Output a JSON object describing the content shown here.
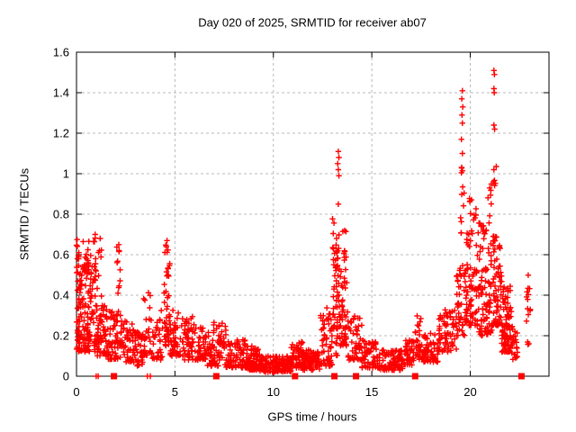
{
  "chart_data": {
    "type": "scatter",
    "title": "Day 020 of 2025, SRMTID for receiver ab07",
    "xlabel": "GPS time / hours",
    "ylabel": "SRMTID / TECUs",
    "xlim": [
      0,
      24
    ],
    "ylim": [
      0,
      1.6
    ],
    "xticks": {
      "values": [
        0,
        5,
        10,
        15,
        20
      ],
      "labels": [
        "0",
        "5",
        "10",
        "15",
        "20"
      ]
    },
    "yticks": {
      "values": [
        0,
        0.2,
        0.4,
        0.6,
        0.8,
        1.0,
        1.2,
        1.4,
        1.6
      ],
      "labels": [
        "0",
        "0.2",
        "0.4",
        "0.6",
        "0.8",
        "1",
        "1.2",
        "1.4",
        "1.6"
      ]
    },
    "grid": true,
    "legend": "none",
    "marker": "plus",
    "colors": {
      "points": "#ff0000",
      "grid": "#b9b9b9",
      "axis": "#000000",
      "text": "#000000",
      "background": "#ffffff"
    },
    "clusters": [
      [
        0.0,
        0.15,
        0.13,
        0.68,
        40,
        1.6
      ],
      [
        0.1,
        0.7,
        0.12,
        0.55,
        95,
        1.8
      ],
      [
        0.3,
        0.65,
        0.5,
        0.67,
        16,
        1.0
      ],
      [
        0.7,
        1.3,
        0.15,
        0.7,
        65,
        1.7
      ],
      [
        0.9,
        1.6,
        0.1,
        0.35,
        60,
        1.4
      ],
      [
        1.6,
        2.1,
        0.08,
        0.32,
        50,
        1.4
      ],
      [
        2.05,
        2.25,
        0.3,
        0.65,
        13,
        1.0
      ],
      [
        2.2,
        2.9,
        0.07,
        0.28,
        55,
        1.4
      ],
      [
        2.9,
        3.4,
        0.05,
        0.22,
        40,
        1.3
      ],
      [
        3.4,
        3.8,
        0.1,
        0.42,
        25,
        1.5
      ],
      [
        3.8,
        4.4,
        0.08,
        0.35,
        35,
        1.5
      ],
      [
        4.45,
        4.75,
        0.15,
        0.67,
        45,
        1.3
      ],
      [
        4.75,
        5.3,
        0.1,
        0.35,
        45,
        1.5
      ],
      [
        5.3,
        6.0,
        0.08,
        0.3,
        55,
        1.5
      ],
      [
        6.0,
        6.6,
        0.08,
        0.25,
        50,
        1.4
      ],
      [
        6.6,
        7.6,
        0.05,
        0.27,
        75,
        1.6
      ],
      [
        7.6,
        8.6,
        0.04,
        0.18,
        75,
        1.4
      ],
      [
        8.6,
        9.3,
        0.03,
        0.15,
        70,
        1.4
      ],
      [
        9.3,
        10.9,
        0.02,
        0.1,
        140,
        1.3
      ],
      [
        10.9,
        11.5,
        0.04,
        0.17,
        60,
        1.4
      ],
      [
        11.5,
        12.4,
        0.03,
        0.13,
        80,
        1.3
      ],
      [
        12.4,
        13.0,
        0.05,
        0.35,
        60,
        1.7
      ],
      [
        13.0,
        13.35,
        0.3,
        0.78,
        42,
        1.0
      ],
      [
        13.05,
        13.3,
        0.1,
        0.3,
        15,
        1.0
      ],
      [
        13.35,
        13.8,
        0.15,
        0.55,
        50,
        1.5
      ],
      [
        13.5,
        13.75,
        0.55,
        0.72,
        9,
        1.0
      ],
      [
        13.8,
        14.5,
        0.08,
        0.3,
        50,
        1.6
      ],
      [
        14.5,
        15.3,
        0.04,
        0.18,
        60,
        1.4
      ],
      [
        15.3,
        16.6,
        0.03,
        0.13,
        90,
        1.3
      ],
      [
        16.6,
        17.15,
        0.05,
        0.18,
        40,
        1.3
      ],
      [
        17.2,
        17.5,
        0.08,
        0.3,
        25,
        1.4
      ],
      [
        17.5,
        18.4,
        0.07,
        0.22,
        65,
        1.3
      ],
      [
        18.4,
        19.3,
        0.12,
        0.33,
        70,
        1.3
      ],
      [
        19.3,
        19.75,
        0.2,
        0.55,
        45,
        1.4
      ],
      [
        19.5,
        19.7,
        0.6,
        1.05,
        12,
        1.0
      ],
      [
        19.75,
        20.4,
        0.25,
        0.75,
        70,
        1.5
      ],
      [
        19.9,
        20.3,
        0.75,
        0.95,
        10,
        1.0
      ],
      [
        20.4,
        21.1,
        0.2,
        0.8,
        90,
        1.6
      ],
      [
        20.9,
        21.1,
        0.8,
        0.95,
        6,
        1.0
      ],
      [
        21.1,
        21.6,
        0.25,
        0.7,
        70,
        1.5
      ],
      [
        21.15,
        21.35,
        0.9,
        1.05,
        4,
        1.0
      ],
      [
        21.6,
        22.1,
        0.12,
        0.45,
        85,
        1.5
      ],
      [
        22.1,
        22.4,
        0.08,
        0.25,
        25,
        1.3
      ],
      [
        22.85,
        23.05,
        0.27,
        0.5,
        12,
        1.0
      ],
      [
        22.85,
        23.0,
        0.15,
        0.18,
        3,
        1.0
      ]
    ],
    "outliers": [
      [
        0.95,
        0.7
      ],
      [
        1.2,
        0.68
      ],
      [
        4.6,
        0.67
      ],
      [
        2.15,
        0.65
      ],
      [
        13.3,
        1.11
      ],
      [
        13.33,
        1.08
      ],
      [
        13.27,
        1.05
      ],
      [
        13.3,
        1.02
      ],
      [
        13.33,
        0.99
      ],
      [
        13.3,
        0.85
      ],
      [
        19.6,
        1.41
      ],
      [
        19.57,
        1.37
      ],
      [
        19.62,
        1.33
      ],
      [
        19.58,
        1.29
      ],
      [
        19.6,
        1.25
      ],
      [
        19.55,
        1.17
      ],
      [
        19.6,
        1.1
      ],
      [
        21.2,
        1.51
      ],
      [
        21.23,
        1.49
      ],
      [
        21.2,
        1.42
      ],
      [
        21.22,
        1.4
      ],
      [
        21.2,
        1.24
      ],
      [
        21.24,
        1.22
      ],
      [
        21.2,
        1.02
      ],
      [
        21.18,
        0.96
      ]
    ],
    "zero_markers": {
      "squares_x": [
        1.9,
        7.1,
        11.1,
        13.1,
        14.2,
        17.2,
        22.6
      ],
      "plus_x": [
        1.0,
        1.1,
        3.6,
        3.75
      ]
    }
  }
}
